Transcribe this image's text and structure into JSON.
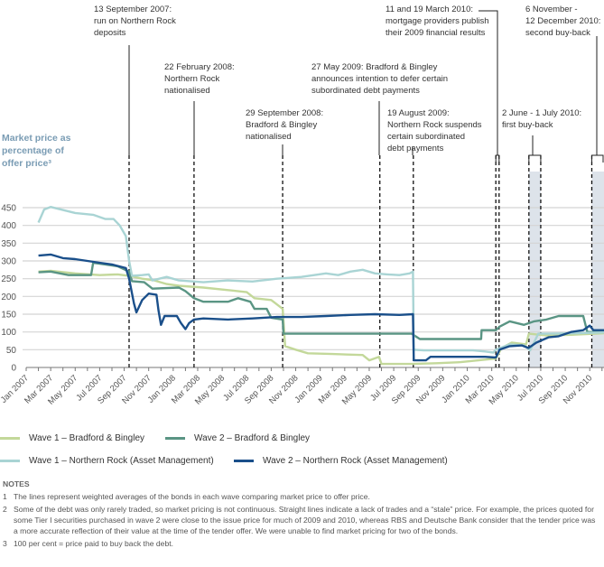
{
  "chart_data": {
    "type": "line",
    "ylabel": "Market price as\npercentage of\noffer price³",
    "ylim": [
      0,
      450
    ],
    "yticks": [
      0,
      50,
      100,
      150,
      200,
      250,
      300,
      350,
      400,
      450
    ],
    "xlim": [
      "2007-01-01",
      "2010-12-31"
    ],
    "xticks": [
      "Jan 2007",
      "Mar 2007",
      "May 2007",
      "Jul 2007",
      "Sep 2007",
      "Nov 2007",
      "Jan 2008",
      "Mar 2008",
      "May 2008",
      "Jul 2008",
      "Sep 2008",
      "Nov 2008",
      "Jan 2009",
      "Mar 2009",
      "May 2009",
      "Jul 2009",
      "Sep 2009",
      "Nov 2009",
      "Jan 2010",
      "Mar 2010",
      "May 2010",
      "Jul 2010",
      "Sep 2010",
      "Nov 2010"
    ],
    "grid": true,
    "legend_placement": "bottom",
    "series": [
      {
        "name": "Wave 1 – Bradford & Bingley",
        "color": "#c3d89a",
        "x": [
          "2007-02-01",
          "2007-03-01",
          "2007-05-01",
          "2007-07-01",
          "2007-08-15",
          "2007-09-13",
          "2007-10-15",
          "2007-11-15",
          "2007-12-15",
          "2008-01-15",
          "2008-03-15",
          "2008-05-15",
          "2008-07-01",
          "2008-07-20",
          "2008-09-01",
          "2008-09-29",
          "2008-10-05",
          "2008-11-01",
          "2008-12-01",
          "2009-02-01",
          "2009-04-15",
          "2009-05-01",
          "2009-05-25",
          "2009-06-01",
          "2009-08-15",
          "2009-10-15",
          "2009-12-15",
          "2010-02-15",
          "2010-03-11",
          "2010-03-25",
          "2010-04-20",
          "2010-05-25",
          "2010-06-02",
          "2010-07-15",
          "2010-09-15",
          "2010-11-15",
          "2010-12-31"
        ],
        "y": [
          270,
          272,
          265,
          260,
          262,
          258,
          250,
          245,
          235,
          230,
          225,
          218,
          212,
          195,
          190,
          165,
          60,
          50,
          40,
          38,
          35,
          20,
          30,
          10,
          10,
          12,
          15,
          22,
          25,
          55,
          70,
          65,
          95,
          90,
          92,
          95,
          98
        ]
      },
      {
        "name": "Wave 2 – Bradford & Bingley",
        "color": "#5a9584",
        "x": [
          "2007-02-01",
          "2007-03-01",
          "2007-04-15",
          "2007-06-10",
          "2007-06-15",
          "2007-07-15",
          "2007-08-15",
          "2007-09-13",
          "2007-09-20",
          "2007-10-20",
          "2007-11-10",
          "2008-01-15",
          "2008-02-01",
          "2008-02-22",
          "2008-03-15",
          "2008-05-15",
          "2008-06-10",
          "2008-07-10",
          "2008-07-20",
          "2008-08-20",
          "2008-09-01",
          "2008-09-29",
          "2008-10-01",
          "2009-08-15",
          "2009-09-05",
          "2010-02-05",
          "2010-02-06",
          "2010-03-11",
          "2010-03-20",
          "2010-04-15",
          "2010-05-20",
          "2010-06-15",
          "2010-07-15",
          "2010-08-15",
          "2010-10-15",
          "2010-10-25",
          "2010-12-31"
        ],
        "y": [
          268,
          270,
          260,
          260,
          295,
          290,
          285,
          270,
          243,
          240,
          222,
          225,
          215,
          195,
          185,
          185,
          195,
          185,
          165,
          165,
          140,
          135,
          95,
          95,
          80,
          80,
          105,
          105,
          115,
          130,
          120,
          130,
          135,
          145,
          145,
          100,
          100
        ]
      },
      {
        "name": "Wave 1 – Northern Rock (Asset Management)",
        "color": "#a9d4d4",
        "x": [
          "2007-02-01",
          "2007-02-15",
          "2007-03-01",
          "2007-05-01",
          "2007-06-15",
          "2007-07-15",
          "2007-08-05",
          "2007-08-20",
          "2007-09-05",
          "2007-09-13",
          "2007-09-20",
          "2007-10-15",
          "2007-11-01",
          "2007-11-10",
          "2007-12-15",
          "2008-01-15",
          "2008-03-15",
          "2008-05-15",
          "2008-07-15",
          "2008-09-15",
          "2008-11-15",
          "2009-01-15",
          "2009-02-15",
          "2009-03-15",
          "2009-04-15",
          "2009-05-15",
          "2009-06-15",
          "2009-07-15",
          "2009-08-10",
          "2009-08-18",
          "2009-08-20",
          "2009-09-15",
          "2010-01-15",
          "2010-02-15",
          "2010-03-05",
          "2010-03-11",
          "2010-04-15",
          "2010-05-20",
          "2010-06-05",
          "2010-06-25",
          "2010-07-15",
          "2010-09-15",
          "2010-11-15",
          "2010-12-31"
        ],
        "y": [
          408,
          445,
          452,
          435,
          430,
          418,
          418,
          400,
          370,
          300,
          258,
          260,
          262,
          245,
          255,
          245,
          240,
          245,
          242,
          250,
          255,
          265,
          260,
          270,
          275,
          265,
          262,
          260,
          265,
          270,
          50,
          48,
          48,
          45,
          42,
          50,
          65,
          62,
          48,
          95,
          95,
          96,
          98,
          100
        ]
      },
      {
        "name": "Wave 2 – Northern Rock (Asset Management)",
        "color": "#1a4f8a",
        "x": [
          "2007-02-01",
          "2007-03-01",
          "2007-04-01",
          "2007-05-01",
          "2007-06-01",
          "2007-07-01",
          "2007-08-01",
          "2007-09-05",
          "2007-09-13",
          "2007-09-25",
          "2007-10-01",
          "2007-10-15",
          "2007-11-01",
          "2007-11-20",
          "2007-11-25",
          "2007-12-01",
          "2007-12-10",
          "2008-01-10",
          "2008-01-20",
          "2008-02-01",
          "2008-02-10",
          "2008-02-22",
          "2008-03-15",
          "2008-05-15",
          "2008-07-15",
          "2008-09-15",
          "2008-11-15",
          "2009-01-15",
          "2009-03-15",
          "2009-05-15",
          "2009-07-15",
          "2009-08-18",
          "2009-08-20",
          "2009-09-20",
          "2009-10-01",
          "2010-02-15",
          "2010-03-11",
          "2010-03-20",
          "2010-04-15",
          "2010-05-15",
          "2010-06-01",
          "2010-06-20",
          "2010-07-20",
          "2010-08-15",
          "2010-09-15",
          "2010-10-15",
          "2010-11-01",
          "2010-11-10",
          "2010-12-31"
        ],
        "y": [
          315,
          318,
          308,
          305,
          300,
          295,
          290,
          280,
          250,
          180,
          155,
          190,
          208,
          205,
          160,
          120,
          145,
          145,
          125,
          108,
          125,
          135,
          138,
          135,
          138,
          142,
          142,
          145,
          148,
          150,
          148,
          150,
          20,
          20,
          30,
          30,
          28,
          50,
          60,
          62,
          55,
          70,
          85,
          88,
          100,
          105,
          118,
          105,
          105
        ]
      }
    ],
    "event_lines": [
      "2007-09-13",
      "2008-02-22",
      "2008-09-29",
      "2009-05-27",
      "2009-08-19",
      "2010-03-11",
      "2010-03-19"
    ],
    "shaded_periods": [
      [
        "2010-06-02",
        "2010-07-01"
      ],
      [
        "2010-11-06",
        "2010-12-12"
      ]
    ],
    "annotations": [
      "13 September 2007:\nrun on Northern Rock\ndeposits",
      "22 February 2008:\nNorthern Rock\nnationalised",
      "29 September 2008:\nBradford & Bingley\nnationalised",
      "27 May 2009: Bradford & Bingley\nannounces intention to defer certain\nsubordinated debt payments",
      "19 August 2009:\nNorthern Rock suspends\ncertain subordinated\ndebt payments",
      "11 and 19 March 2010:\nmortgage providers publish\ntheir 2009 financial results",
      "2 June - 1 July 2010:\nfirst buy-back",
      "6 November -\n12 December 2010:\nsecond buy-back"
    ]
  },
  "notes": {
    "heading": "NOTES",
    "items": [
      {
        "num": "1",
        "text": "The lines represent weighted averages of the bonds in each wave comparing market price to offer price."
      },
      {
        "num": "2",
        "text": "Some of the debt was only rarely traded, so market pricing is not continuous. Straight lines indicate a lack of trades and a “stale” price. For example, the prices quoted for some Tier I securities purchased in wave 2 were close to the issue price for much of 2009 and 2010, whereas RBS and Deutsche Bank consider that the tender price was a more accurate reflection of their value at the time of the tender offer. We were unable to find market pricing for two of the bonds."
      },
      {
        "num": "3",
        "text": "100 per cent = price paid to buy back the debt."
      }
    ]
  }
}
